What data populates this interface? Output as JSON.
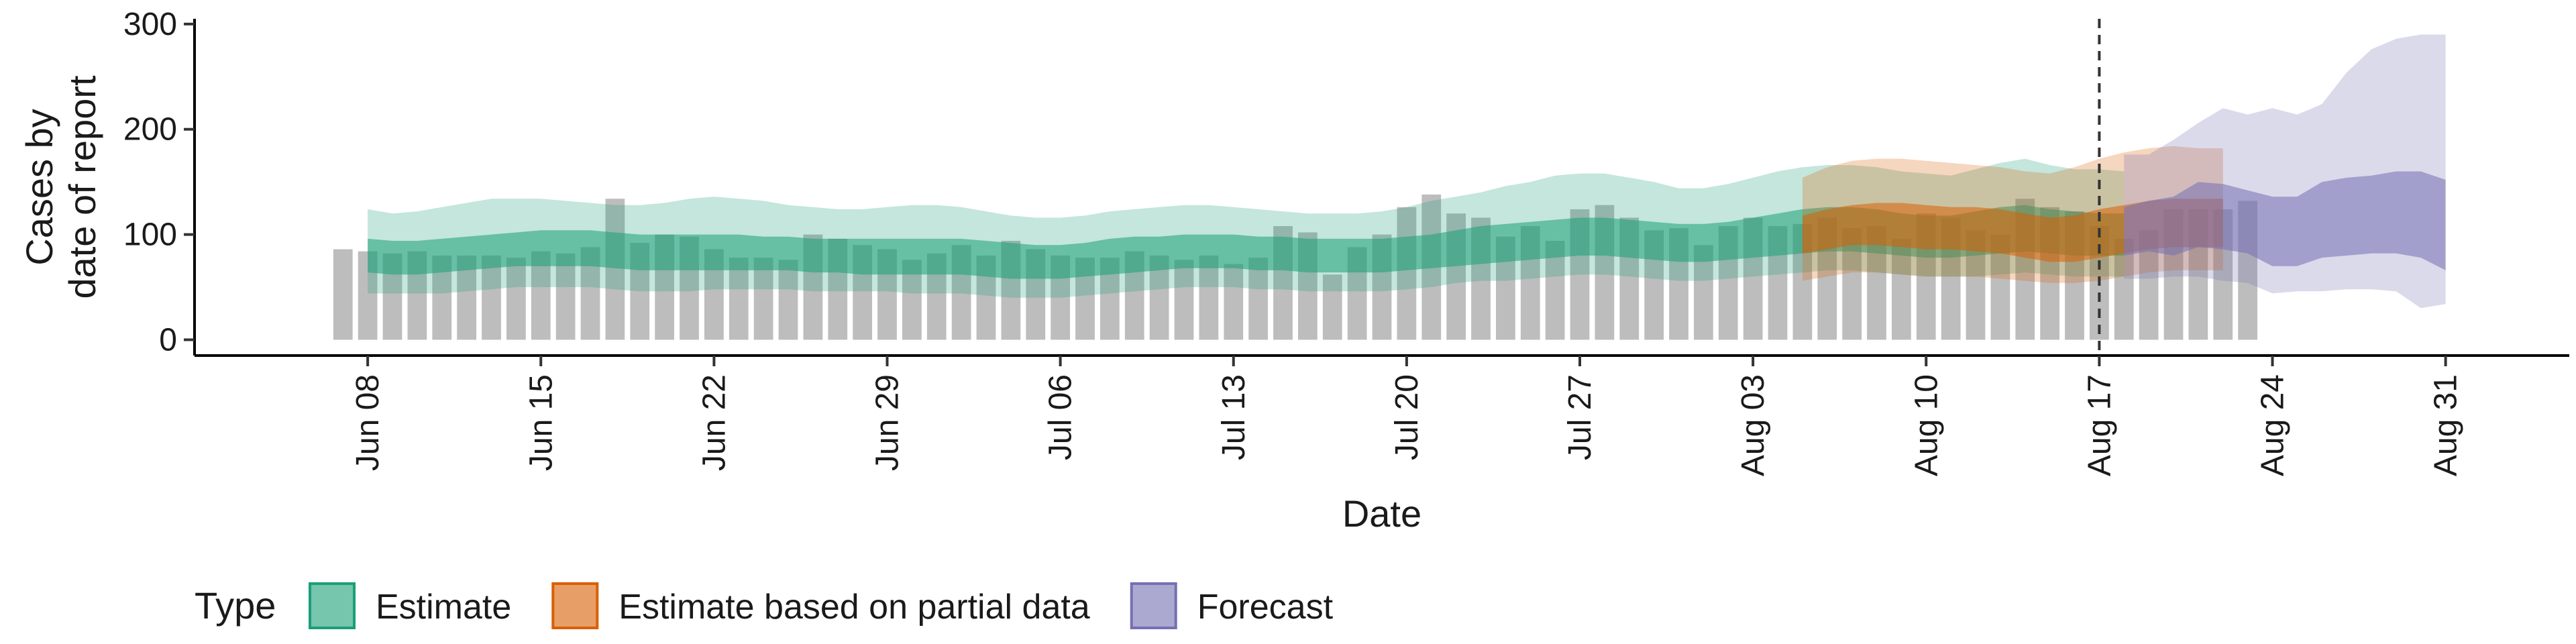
{
  "chart_data": {
    "type": "area",
    "ylabel_lines": [
      "Cases by",
      "date of report"
    ],
    "xlabel": "Date",
    "ylim": [
      -15,
      305
    ],
    "xlim": [
      "2021-06-01",
      "2021-09-05"
    ],
    "y_ticks": [
      0,
      100,
      200,
      300
    ],
    "x_ticks": [
      {
        "date": "2021-06-08",
        "label": "Jun 08"
      },
      {
        "date": "2021-06-15",
        "label": "Jun 15"
      },
      {
        "date": "2021-06-22",
        "label": "Jun 22"
      },
      {
        "date": "2021-06-29",
        "label": "Jun 29"
      },
      {
        "date": "2021-07-06",
        "label": "Jul 06"
      },
      {
        "date": "2021-07-13",
        "label": "Jul 13"
      },
      {
        "date": "2021-07-20",
        "label": "Jul 20"
      },
      {
        "date": "2021-07-27",
        "label": "Jul 27"
      },
      {
        "date": "2021-08-03",
        "label": "Aug 03"
      },
      {
        "date": "2021-08-10",
        "label": "Aug 10"
      },
      {
        "date": "2021-08-17",
        "label": "Aug 17"
      },
      {
        "date": "2021-08-24",
        "label": "Aug 24"
      },
      {
        "date": "2021-08-31",
        "label": "Aug 31"
      }
    ],
    "vline_date": "2021-08-17",
    "bars_start_date": "2021-06-07",
    "reported_cases": [
      86,
      84,
      82,
      84,
      80,
      80,
      80,
      78,
      84,
      82,
      88,
      134,
      92,
      100,
      98,
      86,
      78,
      78,
      76,
      100,
      96,
      90,
      86,
      76,
      82,
      90,
      80,
      94,
      86,
      80,
      78,
      78,
      84,
      80,
      76,
      80,
      72,
      78,
      108,
      102,
      62,
      88,
      100,
      126,
      138,
      120,
      116,
      98,
      108,
      94,
      124,
      128,
      116,
      104,
      106,
      90,
      108,
      116,
      108,
      110,
      116,
      106,
      108,
      96,
      120,
      116,
      104,
      100,
      134,
      126,
      122,
      108,
      96,
      104,
      124,
      124,
      124,
      132
    ],
    "series": [
      {
        "name": "Estimate",
        "color": "#1b9e77",
        "start_date": "2021-06-08",
        "outer_upper": [
          124,
          120,
          122,
          126,
          130,
          134,
          134,
          134,
          132,
          130,
          128,
          128,
          130,
          134,
          136,
          134,
          132,
          128,
          126,
          124,
          124,
          126,
          128,
          128,
          126,
          122,
          118,
          116,
          116,
          118,
          122,
          124,
          126,
          128,
          128,
          126,
          124,
          122,
          120,
          120,
          120,
          122,
          126,
          132,
          136,
          140,
          146,
          150,
          156,
          158,
          158,
          154,
          150,
          144,
          144,
          148,
          154,
          160,
          164,
          166,
          166,
          164,
          160,
          158,
          156,
          162,
          168,
          172,
          166,
          162,
          162,
          160
        ],
        "inner_upper": [
          96,
          94,
          94,
          96,
          98,
          100,
          102,
          104,
          104,
          104,
          102,
          100,
          100,
          100,
          100,
          100,
          98,
          98,
          96,
          96,
          96,
          96,
          96,
          96,
          96,
          94,
          92,
          90,
          90,
          92,
          96,
          98,
          98,
          100,
          100,
          100,
          98,
          98,
          96,
          96,
          96,
          96,
          98,
          100,
          104,
          108,
          110,
          112,
          114,
          116,
          116,
          114,
          112,
          110,
          110,
          112,
          116,
          120,
          124,
          126,
          126,
          124,
          120,
          118,
          118,
          122,
          126,
          128,
          124,
          122,
          120,
          120
        ],
        "inner_lower": [
          64,
          62,
          62,
          64,
          66,
          68,
          70,
          70,
          70,
          70,
          68,
          66,
          66,
          66,
          66,
          66,
          66,
          66,
          64,
          64,
          62,
          62,
          62,
          62,
          62,
          60,
          58,
          58,
          58,
          60,
          62,
          64,
          66,
          68,
          68,
          68,
          66,
          66,
          64,
          64,
          64,
          64,
          66,
          68,
          70,
          72,
          74,
          76,
          78,
          80,
          80,
          78,
          76,
          74,
          74,
          76,
          78,
          80,
          82,
          84,
          84,
          82,
          80,
          78,
          78,
          80,
          82,
          84,
          82,
          80,
          80,
          80
        ],
        "outer_lower": [
          44,
          44,
          44,
          44,
          46,
          48,
          50,
          50,
          50,
          50,
          48,
          46,
          46,
          46,
          48,
          48,
          48,
          48,
          46,
          46,
          46,
          46,
          44,
          44,
          44,
          42,
          40,
          40,
          40,
          42,
          44,
          46,
          48,
          50,
          50,
          50,
          48,
          48,
          46,
          46,
          46,
          46,
          48,
          50,
          54,
          56,
          56,
          58,
          60,
          62,
          62,
          60,
          58,
          56,
          56,
          58,
          60,
          62,
          64,
          66,
          66,
          64,
          62,
          60,
          60,
          60,
          62,
          64,
          62,
          60,
          60,
          60
        ]
      },
      {
        "name": "Estimate based on partial data",
        "color": "#d95f02",
        "start_date": "2021-08-05",
        "outer_upper": [
          154,
          164,
          170,
          172,
          172,
          170,
          168,
          166,
          164,
          160,
          158,
          164,
          172,
          178,
          182,
          184,
          182,
          182
        ],
        "inner_upper": [
          118,
          124,
          128,
          130,
          130,
          128,
          126,
          126,
          124,
          120,
          116,
          118,
          124,
          128,
          132,
          134,
          134,
          134
        ],
        "inner_lower": [
          82,
          86,
          90,
          90,
          88,
          86,
          86,
          84,
          82,
          78,
          74,
          74,
          78,
          82,
          86,
          88,
          88,
          88
        ],
        "outer_lower": [
          56,
          60,
          64,
          64,
          62,
          60,
          60,
          60,
          58,
          56,
          54,
          54,
          56,
          60,
          64,
          66,
          66,
          66
        ]
      },
      {
        "name": "Forecast",
        "color": "#7570b3",
        "start_date": "2021-08-18",
        "outer_upper": [
          176,
          176,
          190,
          206,
          220,
          214,
          220,
          214,
          224,
          254,
          276,
          286,
          290,
          290
        ],
        "inner_upper": [
          126,
          132,
          136,
          150,
          148,
          142,
          136,
          136,
          150,
          154,
          156,
          160,
          160,
          152
        ],
        "inner_lower": [
          80,
          84,
          80,
          88,
          86,
          82,
          70,
          70,
          78,
          80,
          82,
          82,
          78,
          66
        ],
        "outer_lower": [
          58,
          58,
          60,
          60,
          56,
          54,
          44,
          46,
          46,
          48,
          48,
          46,
          30,
          34
        ]
      }
    ],
    "legend": {
      "title": "Type",
      "position": "bottom-left",
      "entries": [
        "Estimate",
        "Estimate based on partial data",
        "Forecast"
      ]
    }
  }
}
